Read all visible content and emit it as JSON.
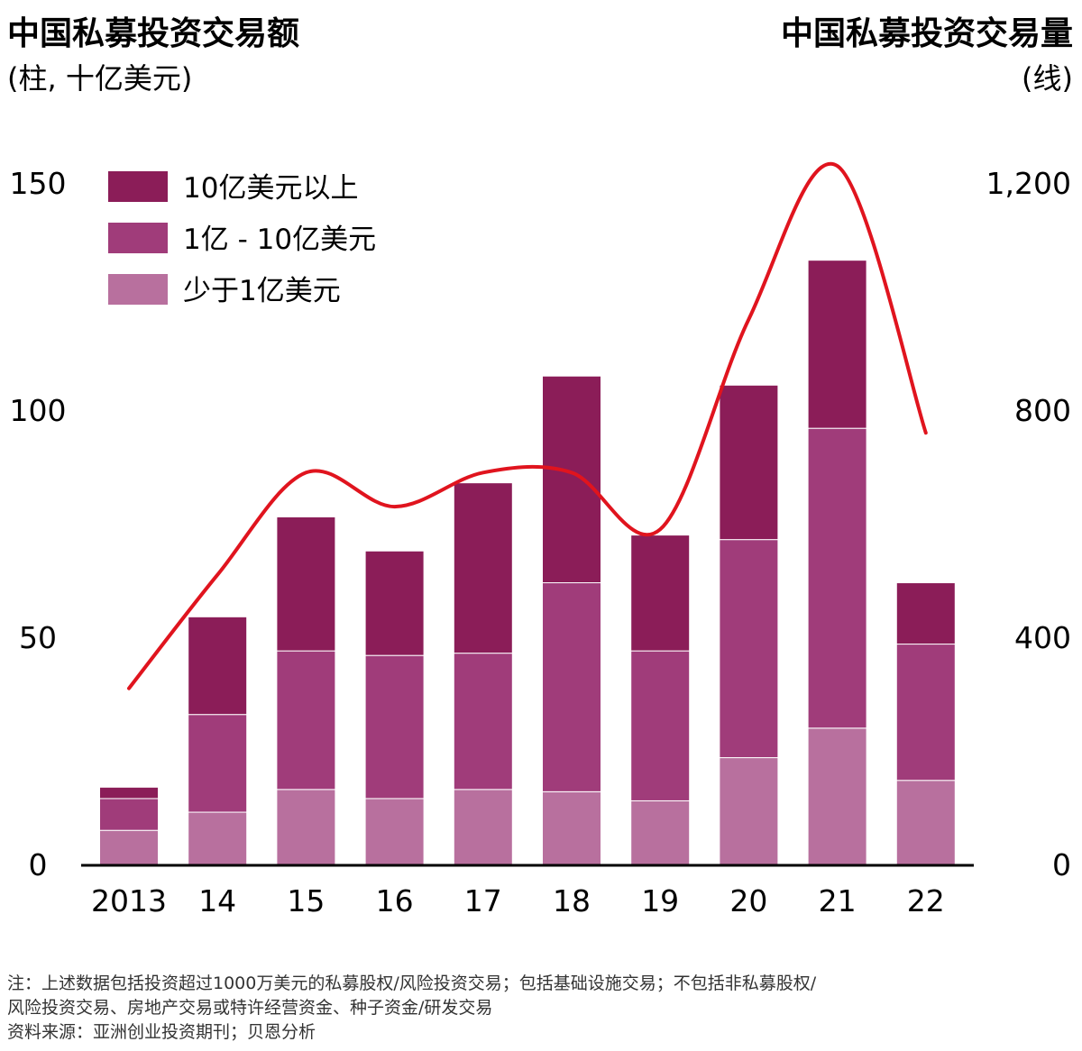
{
  "header": {
    "left_title": "中国私募投资交易额",
    "left_unit": "(柱, 十亿美元)",
    "right_title": "中国私募投资交易量",
    "right_unit": "(线)"
  },
  "colors": {
    "over_1b": "#8b1d58",
    "100m_to_1b": "#a03c7a",
    "under_100m": "#b8709e",
    "line": "#e0141e"
  },
  "chart_data": {
    "type": "bar",
    "stacked": true,
    "categories": [
      "2013",
      "14",
      "15",
      "16",
      "17",
      "18",
      "19",
      "20",
      "21",
      "22"
    ],
    "series": [
      {
        "name": "少于1亿美元",
        "color": "#b8709e",
        "values": [
          7.5,
          11.5,
          16.5,
          14.5,
          16.5,
          16,
          14,
          23.5,
          30,
          18.5
        ]
      },
      {
        "name": "1亿 - 10亿美元",
        "color": "#a03c7a",
        "values": [
          7,
          21.5,
          30.5,
          31.5,
          30,
          46,
          33,
          48,
          66,
          30
        ]
      },
      {
        "name": "10亿美元以上",
        "color": "#8b1d58",
        "values": [
          2.5,
          21.5,
          29.5,
          23,
          37.5,
          45.5,
          25.5,
          34,
          37,
          13.5
        ]
      }
    ],
    "line_series": {
      "values": [
        310,
        510,
        690,
        630,
        690,
        690,
        590,
        960,
        1230,
        760
      ],
      "axis": "right"
    },
    "left_axis": {
      "range": [
        0,
        150
      ],
      "ticks": [
        "0",
        "50",
        "100",
        "150"
      ]
    },
    "right_axis": {
      "range": [
        0,
        1200
      ],
      "ticks": [
        "0",
        "400",
        "800",
        "1,200"
      ]
    },
    "legend_position": "top-left"
  },
  "footnote": {
    "line1": "注：上述数据包括投资超过1000万美元的私募股权/风险投资交易；包括基础设施交易；不包括非私募股权/",
    "line2": "风险投资交易、房地产交易或特许经营资金、种子资金/研发交易",
    "line3": "资料来源：亚洲创业投资期刊；贝恩分析"
  }
}
